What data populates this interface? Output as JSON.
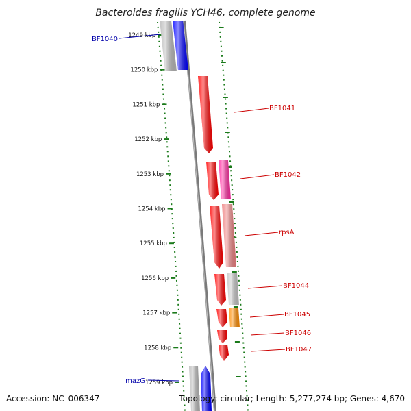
{
  "title": "Bacteroides fragilis YCH46, complete genome",
  "accession": "Accession: NC_006347",
  "topology": "Topology: circular; Length: 5,277,274 bp; Genes: 4,670",
  "colors": {
    "backbone": "#888888",
    "dots": "#1a7a1a",
    "forward_gene": "#0000ff",
    "forward_gray": "#b8b8b8",
    "reverse_gene": "#ff0000",
    "reverse_pink": "#ff2aa0",
    "reverse_salmon": "#ee8080",
    "reverse_gray": "#c4c4c4",
    "reverse_orange": "#ff8c00",
    "label_forward": "#0000aa",
    "label_reverse": "#cc0000"
  },
  "ticks": [
    "1249 kbp",
    "1250 kbp",
    "1251 kbp",
    "1252 kbp",
    "1253 kbp",
    "1254 kbp",
    "1255 kbp",
    "1256 kbp",
    "1257 kbp",
    "1258 kbp",
    "1259 kbp"
  ],
  "labels": {
    "forward": [
      "BF1040",
      "mazG"
    ],
    "reverse": [
      "BF1041",
      "BF1042",
      "rpsA",
      "BF1044",
      "BF1045",
      "BF1046",
      "BF1047"
    ]
  }
}
